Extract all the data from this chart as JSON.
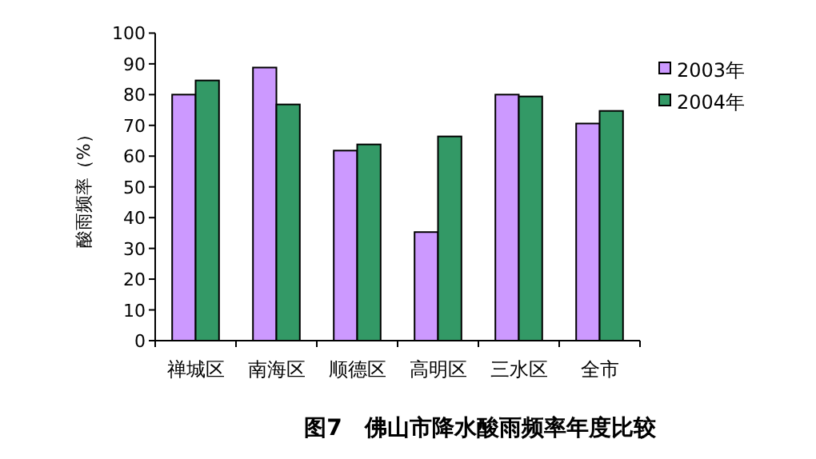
{
  "chart_data": {
    "type": "bar",
    "title": "图7　佛山市降水酸雨频率年度比较",
    "ylabel": "酸雨频率（%）",
    "categories": [
      "禅城区",
      "南海区",
      "顺德区",
      "高明区",
      "三水区",
      "全市"
    ],
    "series": [
      {
        "name": "2003年",
        "color": "#cc99ff",
        "values": [
          80,
          88.8,
          61.8,
          35.3,
          80,
          70.6
        ]
      },
      {
        "name": "2004年",
        "color": "#339966",
        "values": [
          84.6,
          76.8,
          63.8,
          66.4,
          79.4,
          74.7
        ]
      }
    ],
    "ylim": [
      0,
      100
    ],
    "yticks": [
      0,
      10,
      20,
      30,
      40,
      50,
      60,
      70,
      80,
      90,
      100
    ],
    "grid": false,
    "legend": "right"
  }
}
